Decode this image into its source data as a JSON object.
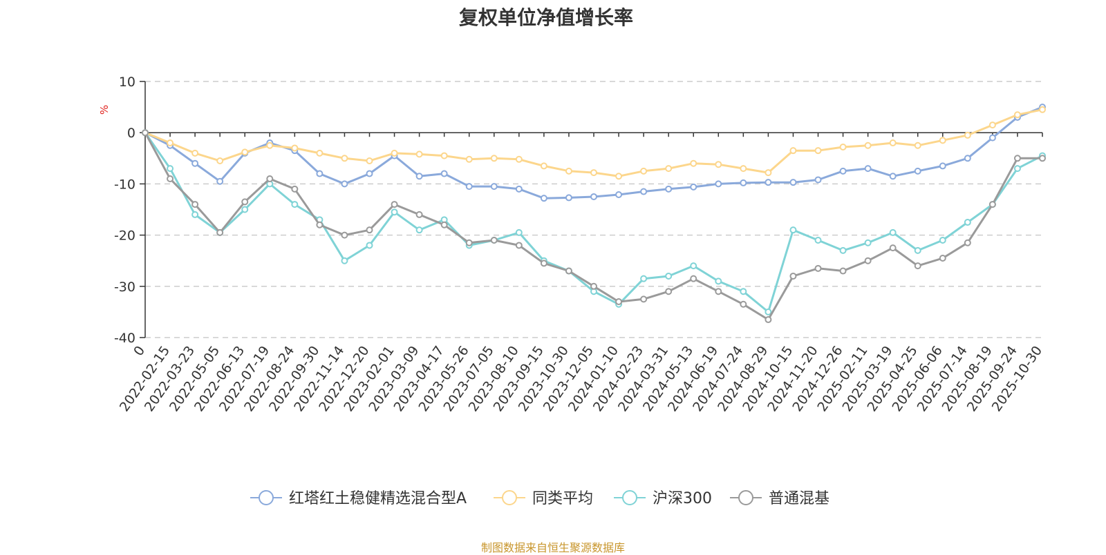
{
  "title": "复权单位净值增长率",
  "credit": "制图数据来自恒生聚源数据库",
  "chart_data": {
    "type": "line",
    "title": "复权单位净值增长率",
    "ylabel": "%",
    "xlabel": "",
    "ylim": [
      -40,
      10
    ],
    "yticks": [
      10,
      0,
      -10,
      -20,
      -30,
      -40
    ],
    "grid": true,
    "legend_position": "bottom",
    "categories": [
      "0",
      "2022-02-15",
      "2022-03-23",
      "2022-05-05",
      "2022-06-13",
      "2022-07-19",
      "2022-08-24",
      "2022-09-30",
      "2022-11-14",
      "2022-12-20",
      "2023-02-01",
      "2023-03-09",
      "2023-04-17",
      "2023-05-26",
      "2023-07-05",
      "2023-08-10",
      "2023-09-15",
      "2023-10-30",
      "2023-12-05",
      "2024-01-10",
      "2024-02-23",
      "2024-03-31",
      "2024-05-13",
      "2024-06-19",
      "2024-07-24",
      "2024-08-29",
      "2024-10-15",
      "2024-11-20",
      "2024-12-26",
      "2025-02-11",
      "2025-03-19",
      "2025-04-25",
      "2025-06-06",
      "2025-07-14",
      "2025-08-19",
      "2025-09-24",
      "2025-10-30"
    ],
    "series": [
      {
        "name": "红塔红土稳健精选混合型A",
        "color": "#8aa9db",
        "values": [
          0,
          -2.5,
          -6,
          -9.5,
          -4,
          -2,
          -3.5,
          -8,
          -10,
          -8,
          -4.5,
          -8.5,
          -8,
          -10.5,
          -10.5,
          -11,
          -12.8,
          -12.7,
          -12.5,
          -12.1,
          -11.5,
          -11.0,
          -10.6,
          -10.0,
          -9.8,
          -9.7,
          -9.7,
          -9.2,
          -7.5,
          -7.0,
          -8.5,
          -7.5,
          -6.5,
          -5,
          -1,
          3,
          5
        ]
      },
      {
        "name": "同类平均",
        "color": "#fcd68c",
        "values": [
          0,
          -2,
          -4,
          -5.5,
          -3.8,
          -2.5,
          -3,
          -4,
          -5,
          -5.5,
          -4,
          -4.2,
          -4.5,
          -5.2,
          -5,
          -5.2,
          -6.5,
          -7.5,
          -7.8,
          -8.5,
          -7.5,
          -7,
          -6,
          -6.2,
          -7,
          -7.8,
          -3.5,
          -3.5,
          -2.8,
          -2.5,
          -2.0,
          -2.5,
          -1.5,
          -0.5,
          1.5,
          3.5,
          4.5
        ]
      },
      {
        "name": "沪深300",
        "color": "#7fd3d6",
        "values": [
          0,
          -7,
          -16,
          -19.5,
          -15,
          -10,
          -14,
          -17,
          -25,
          -22,
          -15.5,
          -19,
          -17,
          -22,
          -21,
          -19.5,
          -25,
          -27,
          -31,
          -33.5,
          -28.5,
          -28,
          -26,
          -29,
          -31,
          -35,
          -19,
          -21,
          -23,
          -21.5,
          -19.5,
          -23,
          -21,
          -17.5,
          -14,
          -7,
          -4.5
        ]
      },
      {
        "name": "普通混基",
        "color": "#9a9a9a",
        "values": [
          0,
          -9,
          -14,
          -19.5,
          -13.5,
          -9,
          -11,
          -18,
          -20,
          -19,
          -14,
          -16,
          -18,
          -21.5,
          -21,
          -22,
          -25.5,
          -27,
          -30,
          -33,
          -32.5,
          -31,
          -28.5,
          -31,
          -33.5,
          -36.5,
          -28,
          -26.5,
          -27,
          -25,
          -22.5,
          -26,
          -24.5,
          -21.5,
          -14,
          -5,
          -5
        ]
      }
    ]
  }
}
